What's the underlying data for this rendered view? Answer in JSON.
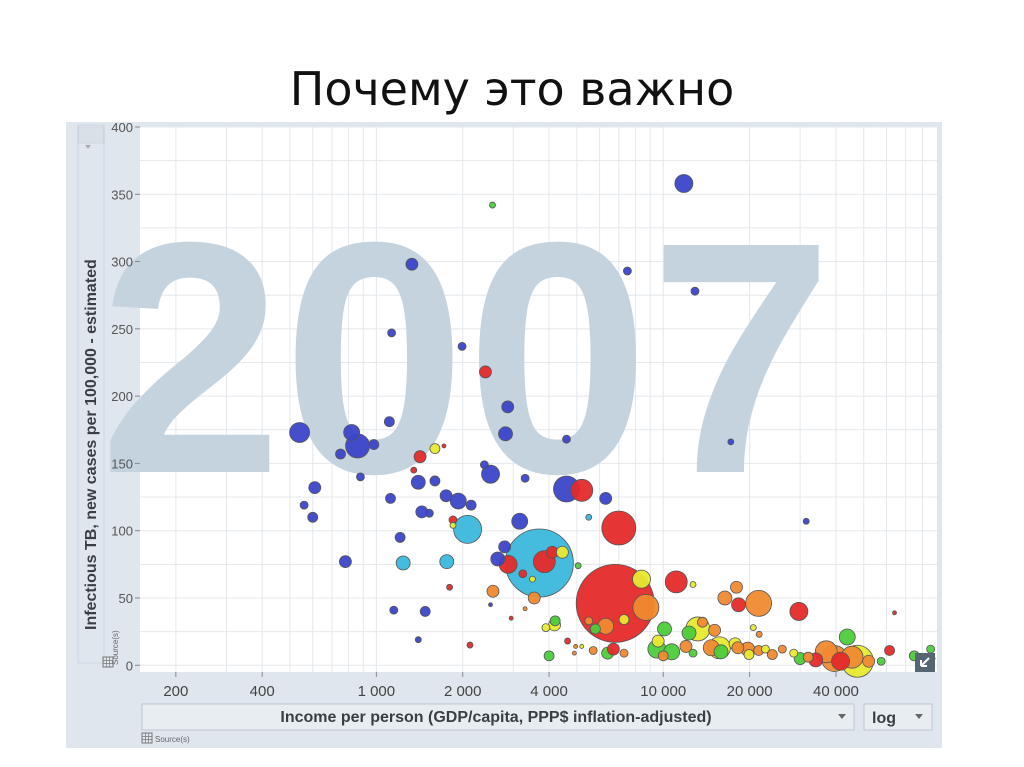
{
  "slide": {
    "title": "Почему это важно"
  },
  "controls": {
    "scale": "log",
    "x_source": "Source(s)",
    "y_source": "Source(s)"
  },
  "colors": {
    "blue": "#3b44c8",
    "cyan": "#3bb8dc",
    "red": "#e52a2a",
    "orange": "#f08a30",
    "yellow": "#e8ea30",
    "green": "#4ccc3c",
    "year_watermark": "#c5d3de"
  },
  "chart_data": {
    "type": "scatter",
    "year_watermark": "2007",
    "xlabel": "Income per person (GDP/capita, PPP$ inflation-adjusted)",
    "ylabel": "Infectious TB, new cases per 100,000 - estimated",
    "x_scale": "log",
    "xlim": [
      150,
      90000
    ],
    "ylim": [
      -5,
      400
    ],
    "x_ticks": [
      200,
      400,
      1000,
      2000,
      4000,
      10000,
      20000,
      40000
    ],
    "x_tick_labels": [
      "200",
      "400",
      "1 000",
      "2 000",
      "4 000",
      "10 000",
      "20 000",
      "40 000"
    ],
    "y_ticks": [
      0,
      50,
      100,
      150,
      200,
      250,
      300,
      350,
      400
    ],
    "points": [
      {
        "x": 11800,
        "y": 358,
        "r": 9,
        "c": "blue"
      },
      {
        "x": 2540,
        "y": 342,
        "r": 3,
        "c": "green"
      },
      {
        "x": 1330,
        "y": 298,
        "r": 6,
        "c": "blue"
      },
      {
        "x": 7500,
        "y": 293,
        "r": 4,
        "c": "blue"
      },
      {
        "x": 12900,
        "y": 278,
        "r": 4,
        "c": "blue"
      },
      {
        "x": 1130,
        "y": 247,
        "r": 4,
        "c": "blue"
      },
      {
        "x": 1990,
        "y": 237,
        "r": 4,
        "c": "blue"
      },
      {
        "x": 2400,
        "y": 218,
        "r": 6,
        "c": "red"
      },
      {
        "x": 2870,
        "y": 192,
        "r": 6,
        "c": "blue"
      },
      {
        "x": 1110,
        "y": 181,
        "r": 5,
        "c": "blue"
      },
      {
        "x": 540,
        "y": 173,
        "r": 10,
        "c": "blue"
      },
      {
        "x": 820,
        "y": 173,
        "r": 8,
        "c": "blue"
      },
      {
        "x": 2820,
        "y": 172,
        "r": 7,
        "c": "blue"
      },
      {
        "x": 4600,
        "y": 168,
        "r": 4,
        "c": "blue"
      },
      {
        "x": 980,
        "y": 164,
        "r": 5,
        "c": "blue"
      },
      {
        "x": 17200,
        "y": 166,
        "r": 3,
        "c": "blue"
      },
      {
        "x": 860,
        "y": 163,
        "r": 12,
        "c": "blue"
      },
      {
        "x": 1600,
        "y": 161,
        "r": 5,
        "c": "yellow"
      },
      {
        "x": 1720,
        "y": 163,
        "r": 2,
        "c": "red"
      },
      {
        "x": 750,
        "y": 157,
        "r": 5,
        "c": "blue"
      },
      {
        "x": 1420,
        "y": 155,
        "r": 6,
        "c": "red"
      },
      {
        "x": 2380,
        "y": 149,
        "r": 4,
        "c": "blue"
      },
      {
        "x": 2500,
        "y": 142,
        "r": 9,
        "c": "blue"
      },
      {
        "x": 1350,
        "y": 145,
        "r": 3,
        "c": "red"
      },
      {
        "x": 880,
        "y": 140,
        "r": 4,
        "c": "blue"
      },
      {
        "x": 1600,
        "y": 137,
        "r": 5,
        "c": "blue"
      },
      {
        "x": 1400,
        "y": 136,
        "r": 7,
        "c": "blue"
      },
      {
        "x": 3300,
        "y": 139,
        "r": 4,
        "c": "blue"
      },
      {
        "x": 610,
        "y": 132,
        "r": 6,
        "c": "blue"
      },
      {
        "x": 4600,
        "y": 131,
        "r": 13,
        "c": "blue"
      },
      {
        "x": 5200,
        "y": 130,
        "r": 11,
        "c": "red"
      },
      {
        "x": 1750,
        "y": 126,
        "r": 6,
        "c": "blue"
      },
      {
        "x": 1120,
        "y": 124,
        "r": 5,
        "c": "blue"
      },
      {
        "x": 6300,
        "y": 124,
        "r": 6,
        "c": "blue"
      },
      {
        "x": 1930,
        "y": 122,
        "r": 8,
        "c": "blue"
      },
      {
        "x": 2140,
        "y": 119,
        "r": 5,
        "c": "blue"
      },
      {
        "x": 560,
        "y": 119,
        "r": 4,
        "c": "blue"
      },
      {
        "x": 1440,
        "y": 114,
        "r": 6,
        "c": "blue"
      },
      {
        "x": 1530,
        "y": 113,
        "r": 4,
        "c": "blue"
      },
      {
        "x": 600,
        "y": 110,
        "r": 5,
        "c": "blue"
      },
      {
        "x": 5500,
        "y": 110,
        "r": 3,
        "c": "cyan"
      },
      {
        "x": 1850,
        "y": 108,
        "r": 4,
        "c": "red"
      },
      {
        "x": 3160,
        "y": 107,
        "r": 8,
        "c": "blue"
      },
      {
        "x": 31500,
        "y": 107,
        "r": 3,
        "c": "blue"
      },
      {
        "x": 1850,
        "y": 104,
        "r": 3,
        "c": "yellow"
      },
      {
        "x": 2080,
        "y": 101,
        "r": 14,
        "c": "cyan"
      },
      {
        "x": 7000,
        "y": 102,
        "r": 17,
        "c": "red"
      },
      {
        "x": 1210,
        "y": 95,
        "r": 5,
        "c": "blue"
      },
      {
        "x": 2800,
        "y": 88,
        "r": 6,
        "c": "blue"
      },
      {
        "x": 3700,
        "y": 76,
        "r": 34,
        "c": "cyan"
      },
      {
        "x": 4100,
        "y": 84,
        "r": 6,
        "c": "red"
      },
      {
        "x": 4450,
        "y": 84,
        "r": 6,
        "c": "yellow"
      },
      {
        "x": 2650,
        "y": 79,
        "r": 7,
        "c": "blue"
      },
      {
        "x": 2880,
        "y": 75,
        "r": 9,
        "c": "red"
      },
      {
        "x": 3850,
        "y": 77,
        "r": 11,
        "c": "red"
      },
      {
        "x": 780,
        "y": 77,
        "r": 6,
        "c": "blue"
      },
      {
        "x": 1240,
        "y": 76,
        "r": 7,
        "c": "cyan"
      },
      {
        "x": 1760,
        "y": 77,
        "r": 7,
        "c": "cyan"
      },
      {
        "x": 3240,
        "y": 68,
        "r": 4,
        "c": "red"
      },
      {
        "x": 3500,
        "y": 64,
        "r": 3,
        "c": "yellow"
      },
      {
        "x": 5050,
        "y": 74,
        "r": 3,
        "c": "green"
      },
      {
        "x": 11100,
        "y": 62,
        "r": 11,
        "c": "red"
      },
      {
        "x": 6800,
        "y": 46,
        "r": 39,
        "c": "red"
      },
      {
        "x": 2550,
        "y": 55,
        "r": 6,
        "c": "orange"
      },
      {
        "x": 1800,
        "y": 58,
        "r": 3,
        "c": "red"
      },
      {
        "x": 8400,
        "y": 64,
        "r": 9,
        "c": "yellow"
      },
      {
        "x": 8700,
        "y": 43,
        "r": 13,
        "c": "orange"
      },
      {
        "x": 12700,
        "y": 60,
        "r": 3,
        "c": "yellow"
      },
      {
        "x": 18000,
        "y": 58,
        "r": 6,
        "c": "orange"
      },
      {
        "x": 16400,
        "y": 50,
        "r": 7,
        "c": "orange"
      },
      {
        "x": 21500,
        "y": 46,
        "r": 13,
        "c": "orange"
      },
      {
        "x": 18300,
        "y": 45,
        "r": 7,
        "c": "red"
      },
      {
        "x": 29700,
        "y": 40,
        "r": 9,
        "c": "red"
      },
      {
        "x": 3550,
        "y": 50,
        "r": 6,
        "c": "orange"
      },
      {
        "x": 1150,
        "y": 41,
        "r": 4,
        "c": "blue"
      },
      {
        "x": 1480,
        "y": 40,
        "r": 5,
        "c": "blue"
      },
      {
        "x": 2500,
        "y": 45,
        "r": 2,
        "c": "blue"
      },
      {
        "x": 3300,
        "y": 42,
        "r": 2,
        "c": "orange"
      },
      {
        "x": 2950,
        "y": 35,
        "r": 2,
        "c": "red"
      },
      {
        "x": 4200,
        "y": 33,
        "r": 5,
        "c": "green"
      },
      {
        "x": 4180,
        "y": 30,
        "r": 6,
        "c": "yellow"
      },
      {
        "x": 3900,
        "y": 28,
        "r": 4,
        "c": "yellow"
      },
      {
        "x": 7300,
        "y": 34,
        "r": 5,
        "c": "yellow"
      },
      {
        "x": 6300,
        "y": 29,
        "r": 8,
        "c": "orange"
      },
      {
        "x": 5800,
        "y": 27,
        "r": 5,
        "c": "green"
      },
      {
        "x": 5500,
        "y": 33,
        "r": 4,
        "c": "orange"
      },
      {
        "x": 10100,
        "y": 27,
        "r": 7,
        "c": "green"
      },
      {
        "x": 13200,
        "y": 27,
        "r": 12,
        "c": "yellow"
      },
      {
        "x": 12300,
        "y": 24,
        "r": 7,
        "c": "green"
      },
      {
        "x": 15100,
        "y": 26,
        "r": 6,
        "c": "orange"
      },
      {
        "x": 13700,
        "y": 32,
        "r": 5,
        "c": "orange"
      },
      {
        "x": 20600,
        "y": 28,
        "r": 3,
        "c": "yellow"
      },
      {
        "x": 21600,
        "y": 23,
        "r": 3,
        "c": "orange"
      },
      {
        "x": 43800,
        "y": 21,
        "r": 8,
        "c": "green"
      },
      {
        "x": 64000,
        "y": 39,
        "r": 2,
        "c": "red"
      },
      {
        "x": 1400,
        "y": 19,
        "r": 3,
        "c": "blue"
      },
      {
        "x": 2120,
        "y": 15,
        "r": 3,
        "c": "red"
      },
      {
        "x": 4640,
        "y": 18,
        "r": 3,
        "c": "red"
      },
      {
        "x": 5200,
        "y": 14,
        "r": 2,
        "c": "yellow"
      },
      {
        "x": 4950,
        "y": 14,
        "r": 2,
        "c": "orange"
      },
      {
        "x": 9600,
        "y": 18,
        "r": 6,
        "c": "yellow"
      },
      {
        "x": 9500,
        "y": 12,
        "r": 9,
        "c": "green"
      },
      {
        "x": 10700,
        "y": 10,
        "r": 8,
        "c": "green"
      },
      {
        "x": 10000,
        "y": 7,
        "r": 5,
        "c": "orange"
      },
      {
        "x": 12000,
        "y": 14,
        "r": 6,
        "c": "orange"
      },
      {
        "x": 12700,
        "y": 9,
        "r": 4,
        "c": "green"
      },
      {
        "x": 14700,
        "y": 13,
        "r": 8,
        "c": "orange"
      },
      {
        "x": 15700,
        "y": 13,
        "r": 11,
        "c": "yellow"
      },
      {
        "x": 15900,
        "y": 10,
        "r": 7,
        "c": "green"
      },
      {
        "x": 17800,
        "y": 16,
        "r": 6,
        "c": "yellow"
      },
      {
        "x": 18200,
        "y": 13,
        "r": 6,
        "c": "orange"
      },
      {
        "x": 19700,
        "y": 12,
        "r": 7,
        "c": "orange"
      },
      {
        "x": 21500,
        "y": 11,
        "r": 5,
        "c": "orange"
      },
      {
        "x": 22700,
        "y": 12,
        "r": 4,
        "c": "yellow"
      },
      {
        "x": 19900,
        "y": 8,
        "r": 5,
        "c": "yellow"
      },
      {
        "x": 24000,
        "y": 8,
        "r": 5,
        "c": "orange"
      },
      {
        "x": 26000,
        "y": 12,
        "r": 4,
        "c": "orange"
      },
      {
        "x": 28500,
        "y": 9,
        "r": 4,
        "c": "yellow"
      },
      {
        "x": 30000,
        "y": 5,
        "r": 6,
        "c": "green"
      },
      {
        "x": 32000,
        "y": 6,
        "r": 5,
        "c": "orange"
      },
      {
        "x": 34000,
        "y": 4,
        "r": 7,
        "c": "red"
      },
      {
        "x": 37000,
        "y": 10,
        "r": 11,
        "c": "orange"
      },
      {
        "x": 39500,
        "y": 5,
        "r": 13,
        "c": "orange"
      },
      {
        "x": 41500,
        "y": 3,
        "r": 9,
        "c": "red"
      },
      {
        "x": 47500,
        "y": 3,
        "r": 16,
        "c": "yellow"
      },
      {
        "x": 45500,
        "y": 6,
        "r": 11,
        "c": "orange"
      },
      {
        "x": 52000,
        "y": 3,
        "r": 6,
        "c": "orange"
      },
      {
        "x": 57500,
        "y": 3,
        "r": 4,
        "c": "green"
      },
      {
        "x": 61500,
        "y": 11,
        "r": 5,
        "c": "red"
      },
      {
        "x": 75000,
        "y": 7,
        "r": 5,
        "c": "green"
      },
      {
        "x": 85500,
        "y": 12,
        "r": 4,
        "c": "green"
      },
      {
        "x": 86500,
        "y": 5,
        "r": 3,
        "c": "green"
      },
      {
        "x": 4000,
        "y": 7,
        "r": 5,
        "c": "green"
      },
      {
        "x": 4900,
        "y": 9,
        "r": 2,
        "c": "orange"
      },
      {
        "x": 6400,
        "y": 9,
        "r": 6,
        "c": "green"
      },
      {
        "x": 6700,
        "y": 12,
        "r": 6,
        "c": "red"
      },
      {
        "x": 7300,
        "y": 9,
        "r": 4,
        "c": "orange"
      },
      {
        "x": 5700,
        "y": 11,
        "r": 4,
        "c": "orange"
      }
    ]
  }
}
